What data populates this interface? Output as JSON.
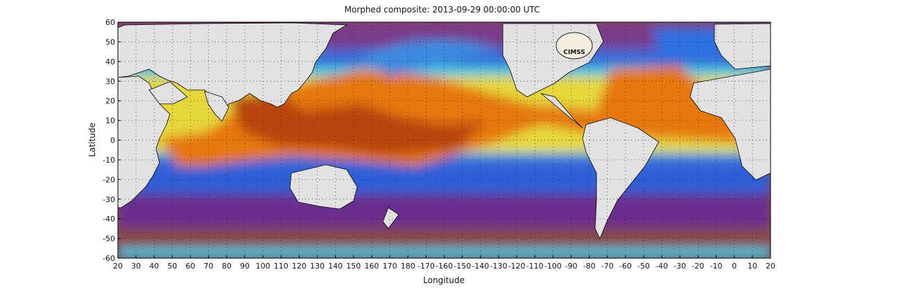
{
  "title": "Morphed composite: 2013-09-29 00:00:00 UTC",
  "x_axis": {
    "label": "Longitude",
    "ticks": [
      "20",
      "30",
      "40",
      "50",
      "60",
      "70",
      "80",
      "90",
      "100",
      "110",
      "120",
      "130",
      "140",
      "150",
      "160",
      "170",
      "180",
      "-170",
      "-160",
      "-150",
      "-140",
      "-130",
      "-120",
      "-110",
      "-100",
      "-90",
      "-80",
      "-70",
      "-60",
      "-50",
      "-40",
      "-30",
      "-20",
      "-10",
      "0",
      "10",
      "20"
    ]
  },
  "y_axis": {
    "label": "Latitude",
    "ticks": [
      "60",
      "50",
      "40",
      "30",
      "20",
      "10",
      "0",
      "-10",
      "-20",
      "-30",
      "-40",
      "-50",
      "-60"
    ],
    "range": [
      -60,
      60
    ]
  },
  "logo": {
    "text": "CIMSS"
  },
  "colors": {
    "land": "#e2e2e2",
    "coast": "#000000",
    "dry_polar": "#9a5a3c",
    "purple": "#6a2a8c",
    "blue": "#2a5ad8",
    "cyan": "#36c8e6",
    "yellow": "#e6e23a",
    "orange": "#e6780e",
    "dark_orange": "#a83806"
  }
}
